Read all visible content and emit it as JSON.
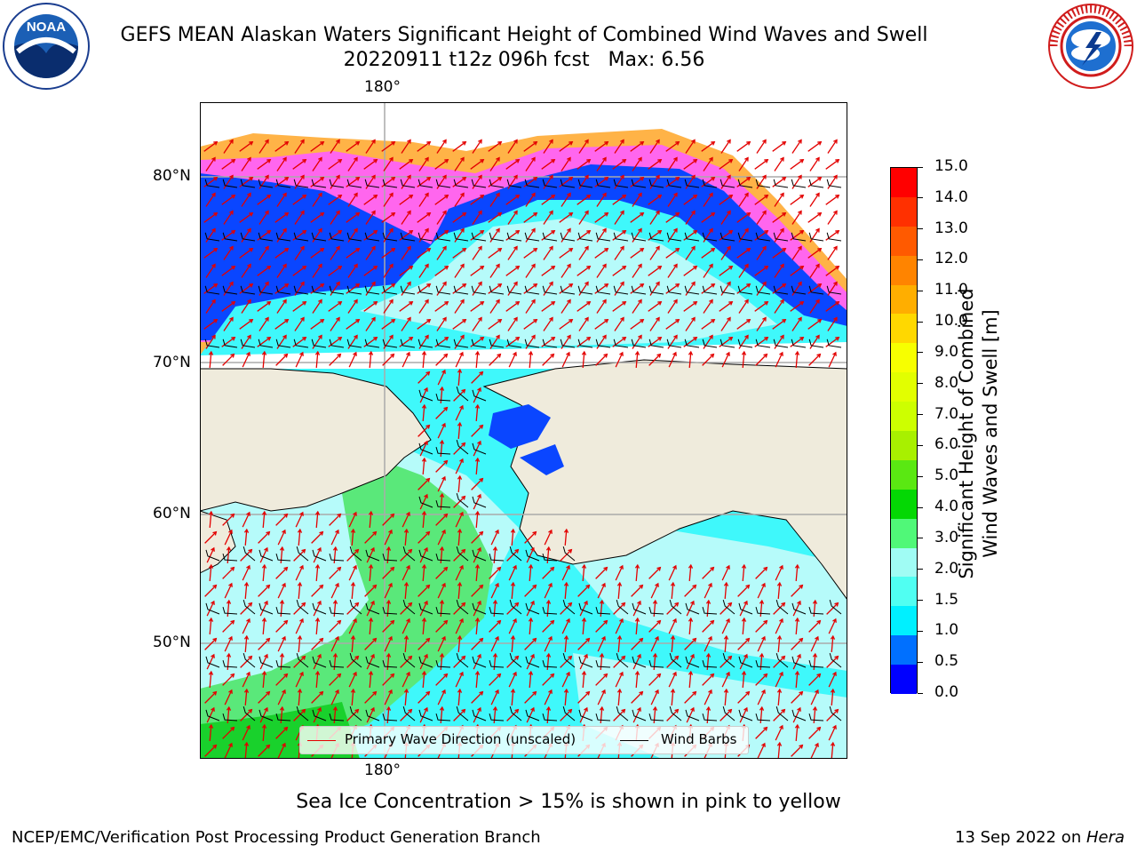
{
  "header": {
    "title_line1": "GEFS MEAN Alaskan Waters Significant Height of Combined Wind Waves and Swell",
    "title_line2": "20220911 t12z 096h fcst   Max: 6.56",
    "left_logo": {
      "name": "NOAA",
      "ring_text": "NATIONAL OCEANIC AND ATMOSPHERIC ADMINISTRATION · U.S. DEPARTMENT OF COMMERCE"
    },
    "right_logo": {
      "ring_text": "NATIONAL WEATHER SERVICE"
    }
  },
  "map": {
    "top_lon_label": "180°",
    "bottom_lon_label": "180°",
    "lat_labels": [
      "80°N",
      "70°N",
      "60°N",
      "50°N"
    ],
    "colors": {
      "land": "#efebdc",
      "ocean_light": "#b6fbfa",
      "ocean_cyan": "#3ff8fb",
      "green": "#5ae87a",
      "deep_green": "#19d12c",
      "blue": "#0a46ff",
      "ice_pink": "#ff66ee",
      "ice_orange": "#ffb347",
      "ice_yellow": "#ffd84a",
      "arrow": "#e30000"
    },
    "legend": {
      "wave_direction": "Primary Wave Direction (unscaled)",
      "wind_barbs": "Wind Barbs"
    }
  },
  "colorbar": {
    "label_line1": "Significant Height of Combined",
    "label_line2": "Wind Waves and Swell [m]",
    "ticks": [
      "15.0",
      "14.0",
      "13.0",
      "12.0",
      "11.0",
      "10.0",
      "9.0",
      "8.0",
      "7.0",
      "6.0",
      "5.0",
      "4.0",
      "3.0",
      "2.0",
      "1.5",
      "1.0",
      "0.5",
      "0.0"
    ],
    "colors_top_to_bottom": [
      "#ff0000",
      "#ff3000",
      "#ff5a00",
      "#ff8400",
      "#ffae00",
      "#ffd800",
      "#f7ff00",
      "#e2ff00",
      "#cdff00",
      "#a8f000",
      "#5ae812",
      "#04d804",
      "#50f878",
      "#a0fcf4",
      "#50fff2",
      "#00f0ff",
      "#0070ff",
      "#0000ff"
    ]
  },
  "notes": {
    "ice_note": "Sea Ice Concentration > 15% is shown in pink to yellow",
    "footer_left": "NCEP/EMC/Verification Post Processing Product Generation Branch",
    "footer_right_date": "13 Sep 2022 on ",
    "footer_right_machine": "Hera"
  }
}
